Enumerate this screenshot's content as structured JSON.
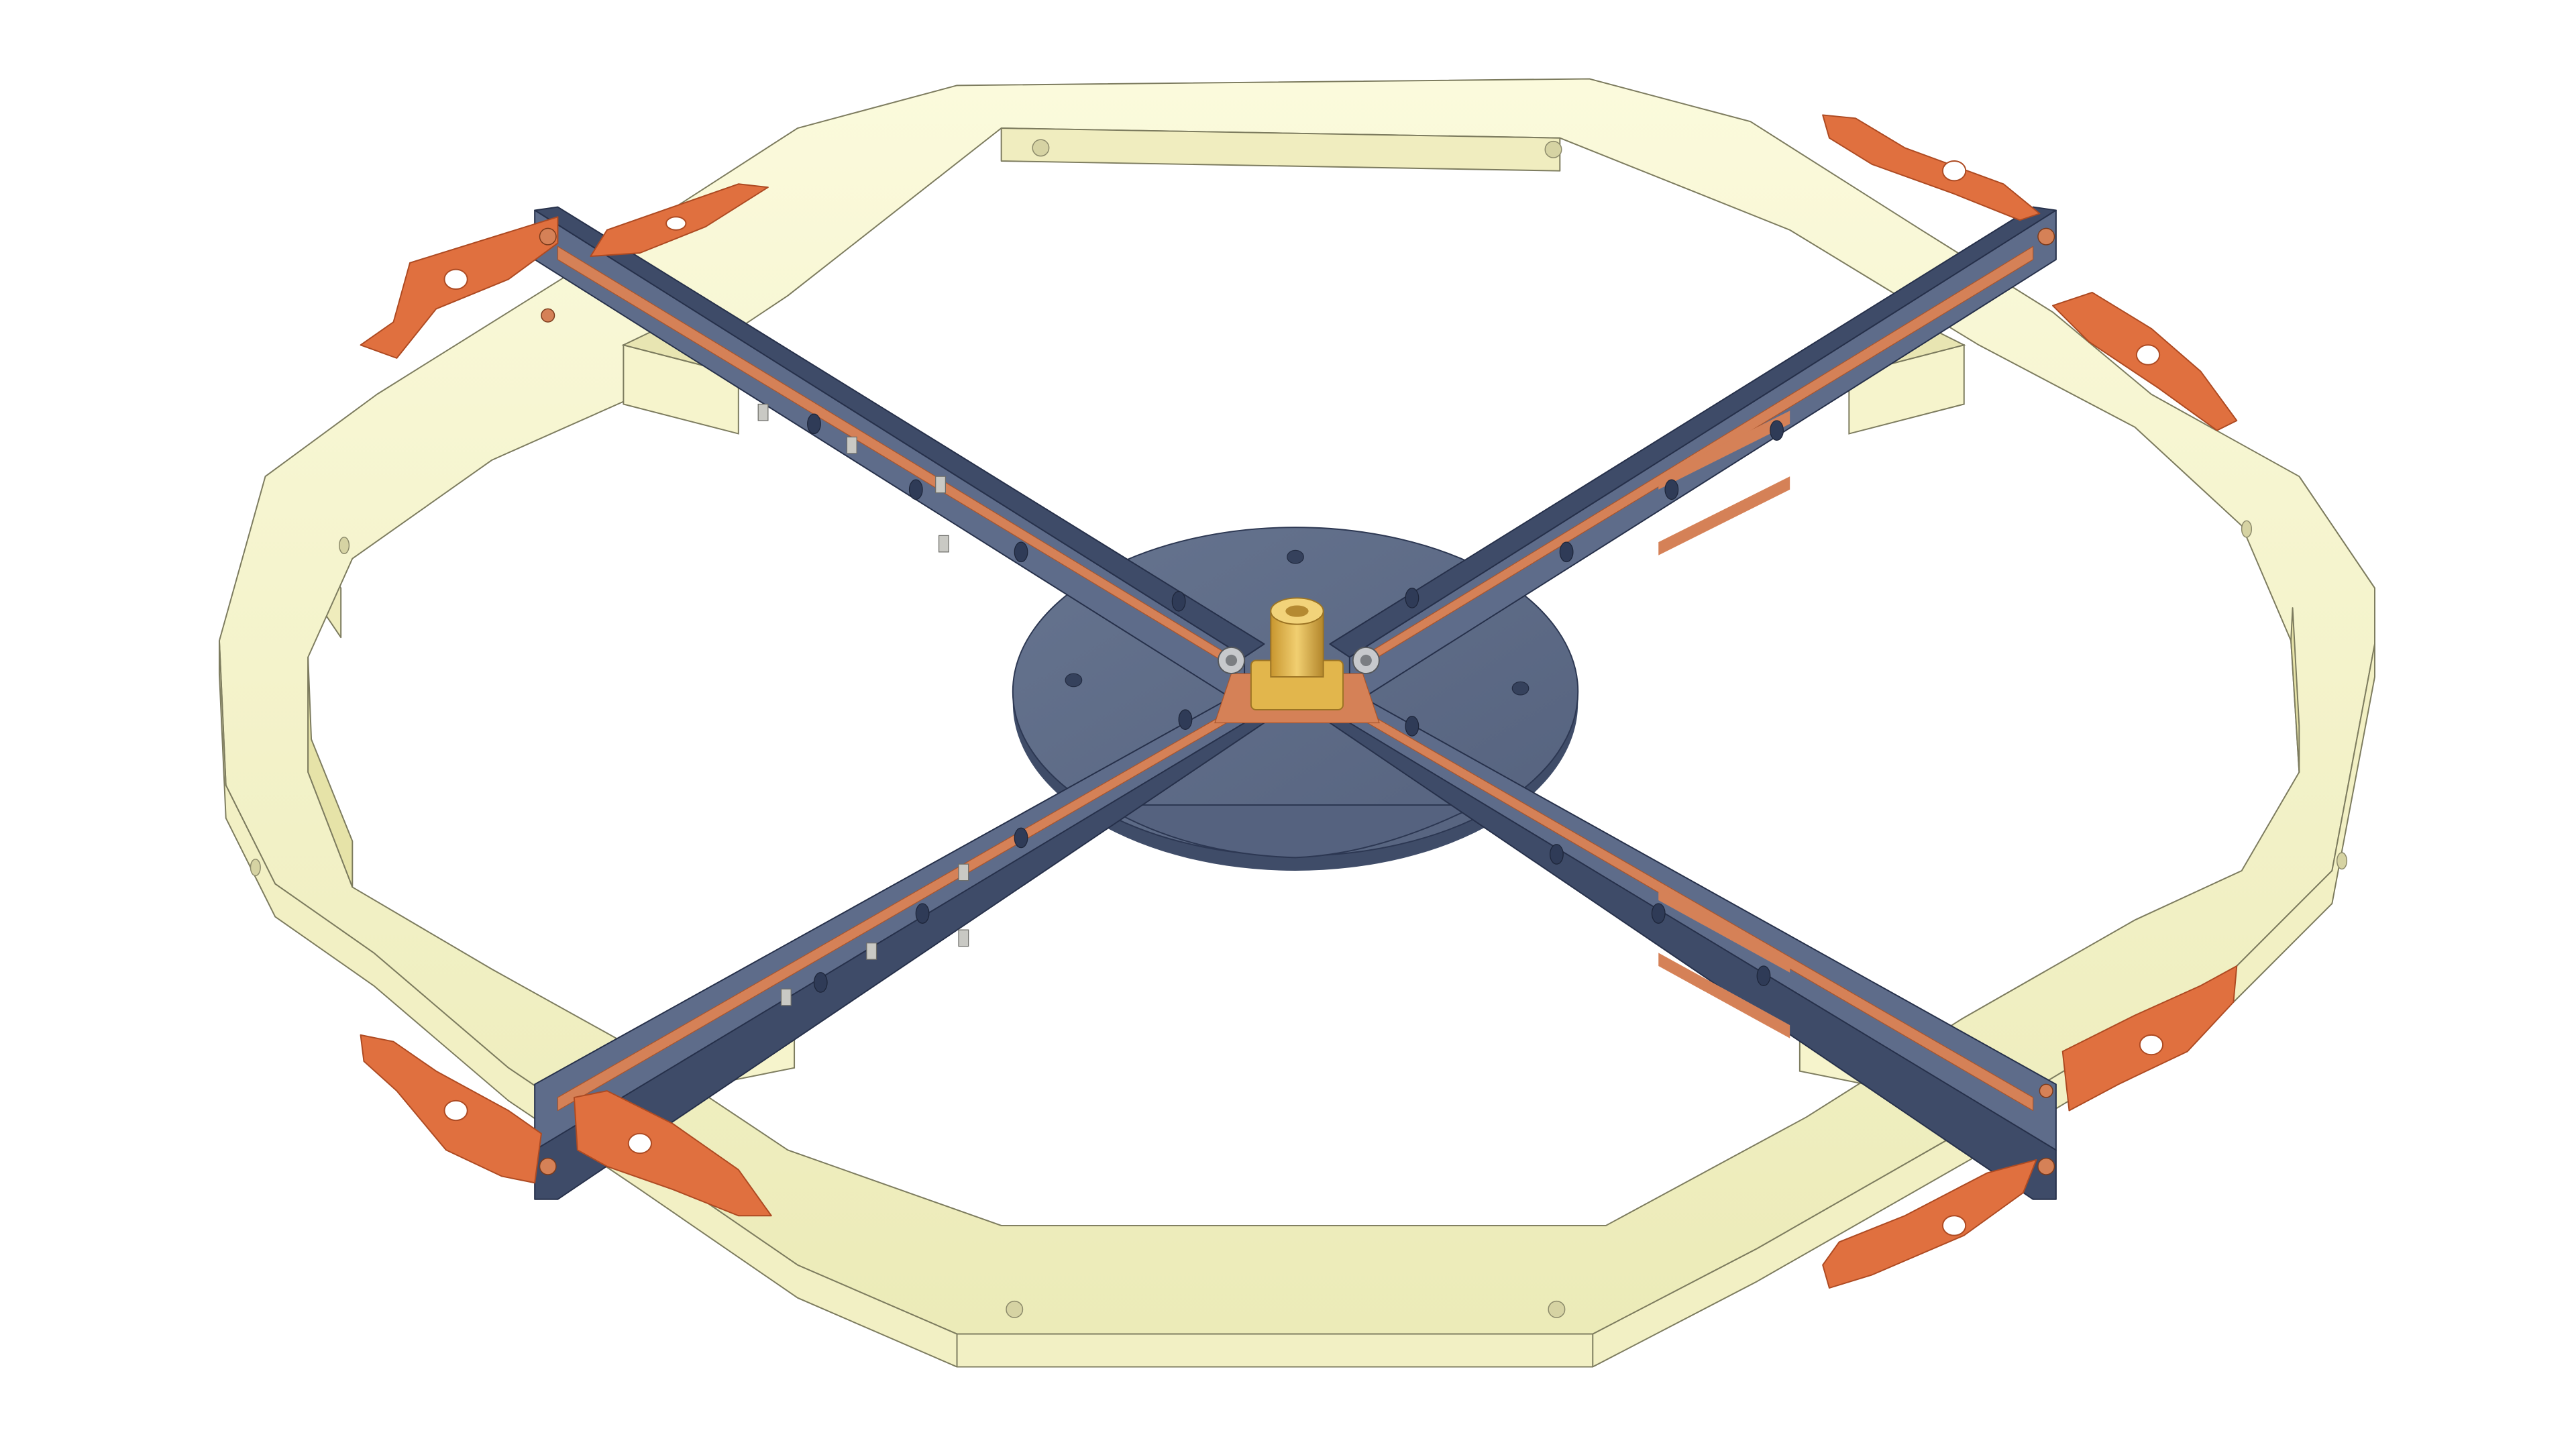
{
  "scene": {
    "subject": "antenna-assembly-render",
    "background_color": "#ffffff",
    "colors": {
      "frame_face": "#f8f6d2",
      "frame_side": "#efecbc",
      "frame_inner": "#e2df9f",
      "frame_edge": "#7c7b5e",
      "board_top": "#5e6c8a",
      "board_side": "#3e4b68",
      "board_edge": "#26304a",
      "copper": "#d58157",
      "copper_dark": "#a9552c",
      "tab_face": "#e0703f",
      "tab_dark": "#ad4a22",
      "hub": "#5c6a87",
      "hub_side": "#3f4c68",
      "connector": "#e2b64c",
      "connector_dark": "#9c7424",
      "screw": "#c7c9cc",
      "smd_part": "#c9c9c4"
    },
    "parts": {
      "frame": "octagonal-ring-frame",
      "arms": 4,
      "tabs": 8,
      "center_connector": "coaxial-connector"
    }
  }
}
